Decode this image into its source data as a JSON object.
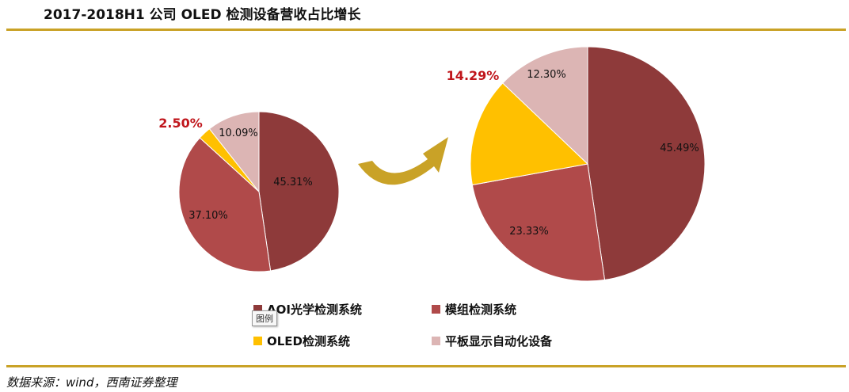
{
  "title": "2017-2018H1 公司 OLED 检测设备营收占比增长",
  "source": "数据来源：wind，西南证券整理",
  "tooltip": "图例",
  "colors": {
    "aoi": "#8e3a3a",
    "module": "#b04a4a",
    "oled": "#ffc000",
    "flat": "#dcb5b4",
    "accent_label": "#c0161c",
    "rule": "#c9a227",
    "arrow": "#c9a227"
  },
  "legend": [
    {
      "label": "AOI光学检测系统",
      "color": "#8e3a3a"
    },
    {
      "label": "模组检测系统",
      "color": "#b04a4a"
    },
    {
      "label": "OLED检测系统",
      "color": "#ffc000"
    },
    {
      "label": "平板显示自动化设备",
      "color": "#dcb5b4"
    }
  ],
  "chart_data": [
    {
      "type": "pie",
      "categories": [
        "AOI光学检测系统",
        "模组检测系统",
        "OLED检测系统",
        "平板显示自动化设备"
      ],
      "values": [
        45.31,
        37.1,
        2.5,
        10.09
      ],
      "labels": [
        "45.31%",
        "37.10%",
        "2.50%",
        "10.09%"
      ],
      "colors": [
        "#8e3a3a",
        "#b04a4a",
        "#ffc000",
        "#dcb5b4"
      ],
      "highlight": "OLED检测系统"
    },
    {
      "type": "pie",
      "categories": [
        "AOI光学检测系统",
        "模组检测系统",
        "OLED检测系统",
        "平板显示自动化设备"
      ],
      "values": [
        45.49,
        23.33,
        14.29,
        12.3
      ],
      "labels": [
        "45.49%",
        "23.33%",
        "14.29%",
        "12.30%"
      ],
      "colors": [
        "#8e3a3a",
        "#b04a4a",
        "#ffc000",
        "#dcb5b4"
      ],
      "highlight": "OLED检测系统"
    }
  ]
}
